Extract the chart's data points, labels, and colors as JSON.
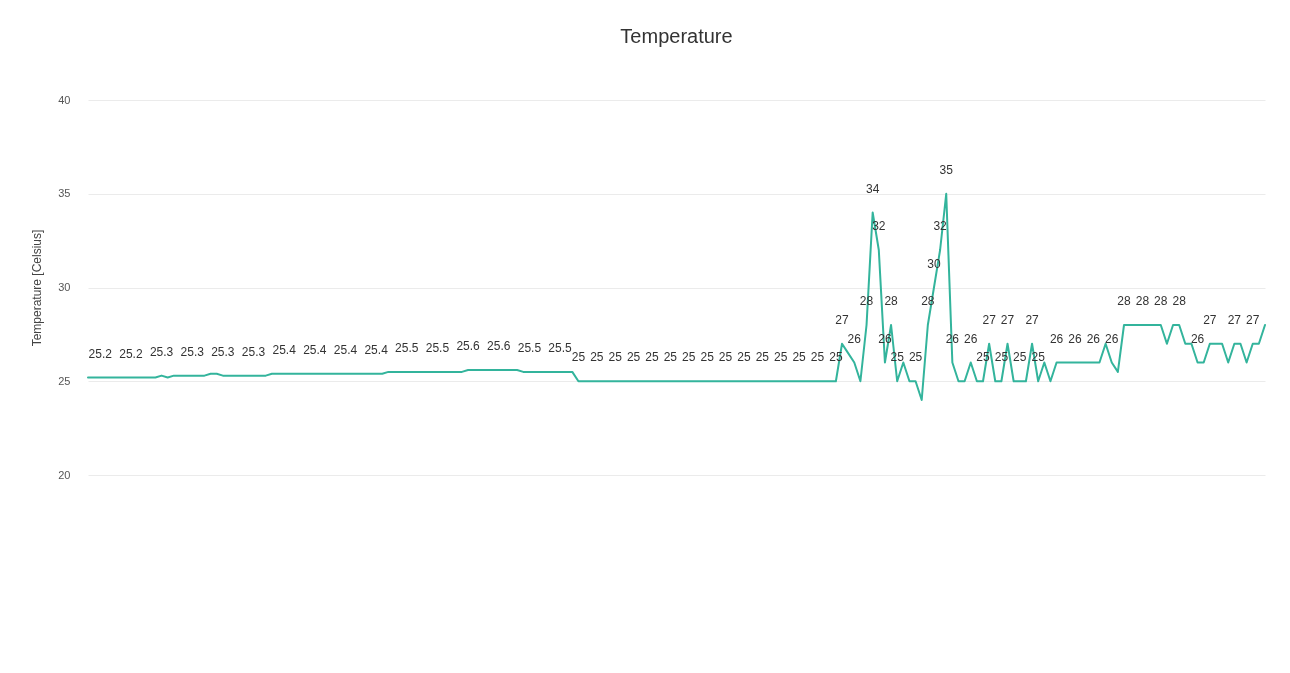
{
  "chart_data": {
    "type": "line",
    "title": "Temperature",
    "ylabel": "Temperature [Celsius]",
    "categories": [
      null,
      null,
      null,
      null,
      null,
      null,
      null,
      null,
      null,
      null,
      null,
      null,
      null,
      null,
      null,
      null,
      null,
      null,
      null,
      null,
      null,
      null,
      null,
      null,
      null,
      null,
      null,
      null,
      null,
      null,
      null,
      null,
      null,
      null,
      null,
      null,
      null,
      null,
      null,
      null,
      null,
      null,
      null,
      null,
      null,
      null,
      null,
      null,
      null,
      null,
      null,
      null,
      null,
      null,
      null,
      null,
      null,
      null,
      null,
      null,
      null,
      null,
      null,
      null,
      null,
      null,
      null,
      null,
      null,
      null,
      null,
      null,
      null,
      null,
      null,
      null,
      null,
      null,
      null,
      null,
      null,
      null,
      null,
      null,
      null,
      null,
      null,
      null,
      null,
      null,
      null,
      null,
      null,
      null,
      null,
      null,
      null,
      null,
      null,
      null,
      null,
      null,
      null,
      null,
      null,
      null,
      null,
      null,
      null,
      null,
      null,
      null,
      null,
      null,
      null,
      null,
      null,
      null,
      null,
      null,
      null,
      null,
      null,
      null,
      null,
      null,
      null,
      null,
      null,
      null,
      null,
      null,
      null,
      null,
      null,
      null,
      null,
      null,
      null,
      null,
      null,
      null,
      null,
      null,
      null,
      null,
      null,
      null,
      null,
      null,
      null,
      null,
      null,
      null,
      null,
      null,
      null,
      null,
      null,
      null,
      null,
      null,
      null,
      null,
      null,
      null,
      null,
      null,
      null,
      null,
      null,
      null,
      null,
      null,
      null,
      null,
      null,
      null,
      null,
      null,
      null,
      null,
      null,
      null,
      null,
      null,
      null,
      null,
      null,
      null,
      null,
      null,
      null
    ],
    "series": [
      {
        "color": "#33b49c",
        "values": [
          25.2,
          25.2,
          25.2,
          25.2,
          25.2,
          25.2,
          25.2,
          25.2,
          25.2,
          25.2,
          25.2,
          25.2,
          25.3,
          25.2,
          25.3,
          25.3,
          25.3,
          25.3,
          25.3,
          25.3,
          25.4,
          25.4,
          25.3,
          25.3,
          25.3,
          25.3,
          25.3,
          25.3,
          25.3,
          25.3,
          25.4,
          25.4,
          25.4,
          25.4,
          25.4,
          25.4,
          25.4,
          25.4,
          25.4,
          25.4,
          25.4,
          25.4,
          25.4,
          25.4,
          25.4,
          25.4,
          25.4,
          25.4,
          25.4,
          25.5,
          25.5,
          25.5,
          25.5,
          25.5,
          25.5,
          25.5,
          25.5,
          25.5,
          25.5,
          25.5,
          25.5,
          25.5,
          25.6,
          25.6,
          25.6,
          25.6,
          25.6,
          25.6,
          25.6,
          25.6,
          25.6,
          25.5,
          25.5,
          25.5,
          25.5,
          25.5,
          25.5,
          25.5,
          25.5,
          25.5,
          25,
          25,
          25,
          25,
          25,
          25,
          25,
          25,
          25,
          25,
          25,
          25,
          25,
          25,
          25,
          25,
          25,
          25,
          25,
          25,
          25,
          25,
          25,
          25,
          25,
          25,
          25,
          25,
          25,
          25,
          25,
          25,
          25,
          25,
          25,
          25,
          25,
          25,
          25,
          25,
          25,
          25,
          25,
          27,
          26.5,
          26,
          25,
          28,
          34,
          32,
          26,
          28,
          25,
          26,
          25,
          25,
          24,
          28,
          30,
          32,
          35,
          26,
          25,
          25,
          26,
          25,
          25,
          27,
          25,
          25,
          27,
          25,
          25,
          25,
          27,
          25,
          26,
          25,
          26,
          26,
          26,
          26,
          26,
          26,
          26,
          26,
          27,
          26,
          25.5,
          28,
          28,
          28,
          28,
          28,
          28,
          28,
          27,
          28,
          28,
          27,
          27,
          26,
          26,
          27,
          27,
          27,
          26,
          27,
          27,
          26,
          27,
          27,
          28
        ],
        "value_labels": [
          null,
          null,
          "25.2",
          null,
          null,
          null,
          null,
          "25.2",
          null,
          null,
          null,
          null,
          "25.3",
          null,
          null,
          null,
          null,
          "25.3",
          null,
          null,
          null,
          null,
          "25.3",
          null,
          null,
          null,
          null,
          "25.3",
          null,
          null,
          null,
          null,
          "25.4",
          null,
          null,
          null,
          null,
          "25.4",
          null,
          null,
          null,
          null,
          "25.4",
          null,
          null,
          null,
          null,
          "25.4",
          null,
          null,
          null,
          null,
          "25.5",
          null,
          null,
          null,
          null,
          "25.5",
          null,
          null,
          null,
          null,
          "25.6",
          null,
          null,
          null,
          null,
          "25.6",
          null,
          null,
          null,
          null,
          "25.5",
          null,
          null,
          null,
          null,
          "25.5",
          null,
          null,
          "25",
          null,
          null,
          "25",
          null,
          null,
          "25",
          null,
          null,
          "25",
          null,
          null,
          "25",
          null,
          null,
          "25",
          null,
          null,
          "25",
          null,
          null,
          "25",
          null,
          null,
          "25",
          null,
          null,
          "25",
          null,
          null,
          "25",
          null,
          null,
          "25",
          null,
          null,
          "25",
          null,
          null,
          "25",
          null,
          null,
          "25",
          "27",
          null,
          "26",
          null,
          "28",
          "34",
          "32",
          "26",
          "28",
          "25",
          null,
          null,
          "25",
          null,
          "28",
          "30",
          "32",
          "35",
          "26",
          null,
          null,
          "26",
          null,
          "25",
          "27",
          null,
          "25",
          "27",
          null,
          "25",
          null,
          "27",
          "25",
          null,
          null,
          "26",
          null,
          null,
          "26",
          null,
          null,
          "26",
          null,
          null,
          "26",
          null,
          "28",
          null,
          null,
          "28",
          null,
          null,
          "28",
          null,
          null,
          "28",
          null,
          null,
          "26",
          null,
          "27",
          null,
          null,
          null,
          "27",
          null,
          null,
          "27",
          null,
          null
        ]
      }
    ],
    "ylim": [
      20,
      40
    ],
    "yticks": [
      20,
      25,
      30,
      35,
      40
    ],
    "grid": "y",
    "tick_labels": "y",
    "line_style": "solid"
  }
}
